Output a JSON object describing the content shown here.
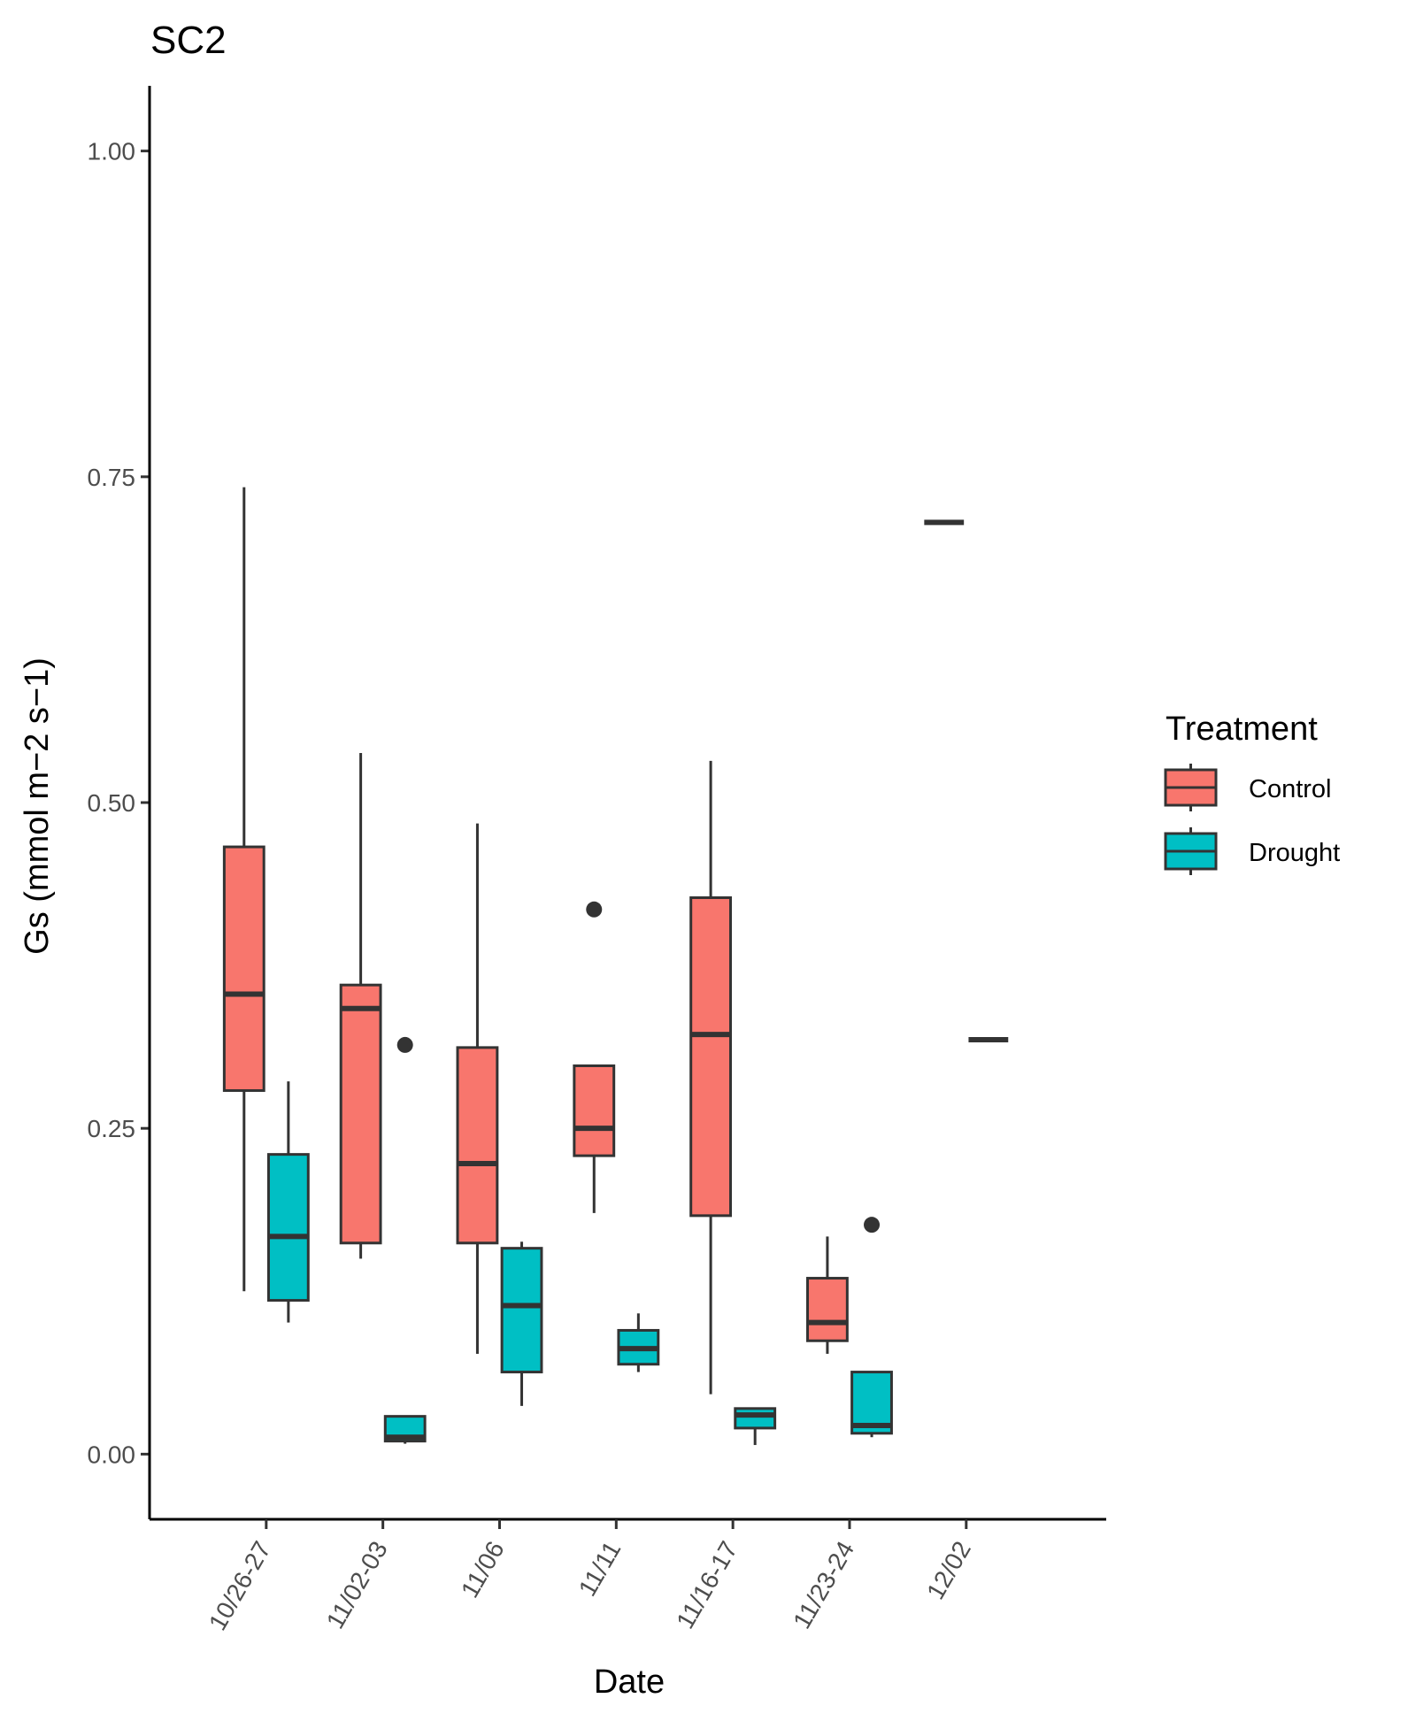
{
  "chart_data": {
    "type": "boxplot",
    "title": "SC2",
    "xlabel": "Date",
    "ylabel": "Gs (mmol m−2 s−1)",
    "ylim": [
      -0.05,
      1.05
    ],
    "yticks": [
      0.0,
      0.25,
      0.5,
      0.75,
      1.0
    ],
    "ytick_labels": [
      "0.00",
      "0.25",
      "0.50",
      "0.75",
      "1.00"
    ],
    "categories": [
      "10/26-27",
      "11/02-03",
      "11/06",
      "11/11",
      "11/16-17",
      "11/23-24",
      "12/02"
    ],
    "legend": {
      "title": "Treatment",
      "position": "right",
      "entries": [
        {
          "name": "Control",
          "color": "#F8766D"
        },
        {
          "name": "Drought",
          "color": "#00BFC4"
        }
      ]
    },
    "series": [
      {
        "name": "Control",
        "color": "#F8766D",
        "boxes": [
          {
            "min": 0.125,
            "q1": 0.279,
            "median": 0.353,
            "q3": 0.466,
            "max": 0.742,
            "outliers": []
          },
          {
            "min": 0.15,
            "q1": 0.162,
            "median": 0.342,
            "q3": 0.36,
            "max": 0.538,
            "outliers": []
          },
          {
            "min": 0.077,
            "q1": 0.162,
            "median": 0.223,
            "q3": 0.312,
            "max": 0.484,
            "outliers": []
          },
          {
            "min": 0.185,
            "q1": 0.229,
            "median": 0.25,
            "q3": 0.298,
            "max": 0.298,
            "outliers": [
              0.418
            ]
          },
          {
            "min": 0.046,
            "q1": 0.183,
            "median": 0.322,
            "q3": 0.427,
            "max": 0.532,
            "outliers": []
          },
          {
            "min": 0.077,
            "q1": 0.087,
            "median": 0.101,
            "q3": 0.135,
            "max": 0.167,
            "outliers": []
          },
          {
            "min": 0.715,
            "q1": 0.715,
            "median": 0.715,
            "q3": 0.715,
            "max": 0.715,
            "outliers": []
          }
        ]
      },
      {
        "name": "Drought",
        "color": "#00BFC4",
        "boxes": [
          {
            "min": 0.101,
            "q1": 0.118,
            "median": 0.167,
            "q3": 0.23,
            "max": 0.286,
            "outliers": []
          },
          {
            "min": 0.008,
            "q1": 0.01,
            "median": 0.013,
            "q3": 0.029,
            "max": 0.029,
            "outliers": [
              0.314
            ]
          },
          {
            "min": 0.037,
            "q1": 0.063,
            "median": 0.114,
            "q3": 0.158,
            "max": 0.163,
            "outliers": []
          },
          {
            "min": 0.063,
            "q1": 0.069,
            "median": 0.081,
            "q3": 0.095,
            "max": 0.108,
            "outliers": []
          },
          {
            "min": 0.007,
            "q1": 0.02,
            "median": 0.03,
            "q3": 0.035,
            "max": 0.035,
            "outliers": []
          },
          {
            "min": 0.013,
            "q1": 0.016,
            "median": 0.022,
            "q3": 0.063,
            "max": 0.063,
            "outliers": [
              0.176
            ]
          },
          {
            "min": 0.318,
            "q1": 0.318,
            "median": 0.318,
            "q3": 0.318,
            "max": 0.318,
            "outliers": []
          }
        ]
      }
    ]
  }
}
